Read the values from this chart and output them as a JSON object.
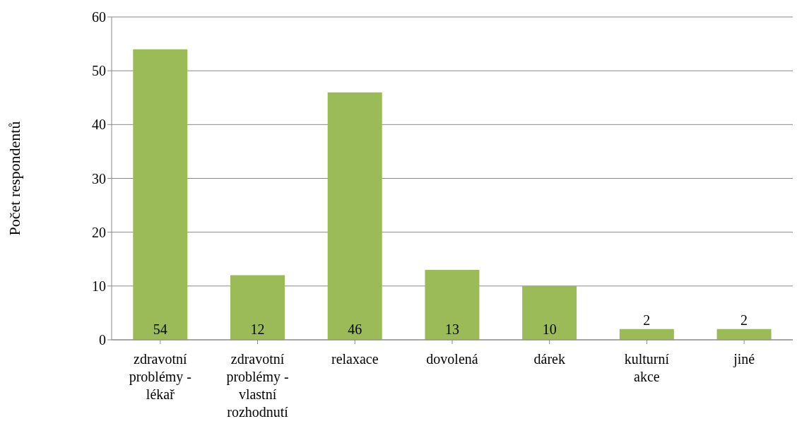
{
  "chart_data": {
    "type": "bar",
    "ylabel": "Počet respondentů",
    "categories": [
      "zdravotní problémy - lékař",
      "zdravotní problémy - vlastní rozhodnutí",
      "relaxace",
      "dovolená",
      "dárek",
      "kulturní akce",
      "jiné"
    ],
    "values": [
      54,
      12,
      46,
      13,
      10,
      2,
      2
    ],
    "color": "#9bbb59",
    "ylim": [
      0,
      60
    ],
    "yticks": [
      0,
      10,
      20,
      30,
      40,
      50,
      60
    ],
    "grid": "y",
    "data_labels": true,
    "legend": false
  }
}
